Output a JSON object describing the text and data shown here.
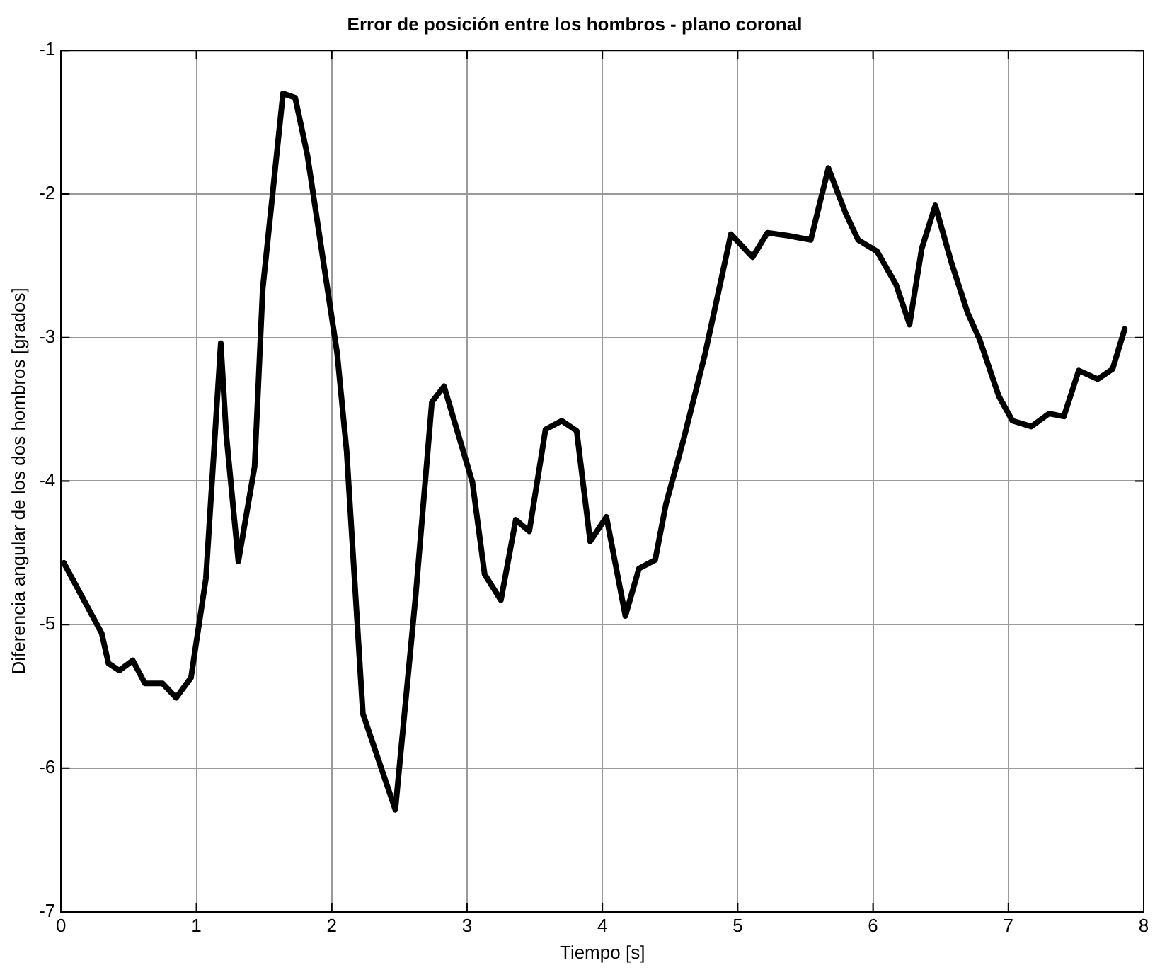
{
  "chart_data": {
    "type": "line",
    "title": "Error de posición entre los hombros - plano coronal",
    "xlabel": "Tiempo [s]",
    "ylabel": "Diferencia angular de los dos hombros [grados]",
    "xlim": [
      0,
      8
    ],
    "xticks": [
      0,
      1,
      2,
      3,
      4,
      5,
      6,
      7,
      8
    ],
    "ylim": [
      -7,
      -1
    ],
    "yticks": [
      -7,
      -6,
      -5,
      -4,
      -3,
      -2,
      -1
    ],
    "grid": true,
    "legend": false,
    "marker": "none",
    "line_style": "solid",
    "series": [
      {
        "color": "#000000",
        "x": [
          0.02,
          0.3,
          0.35,
          0.43,
          0.53,
          0.62,
          0.75,
          0.85,
          0.96,
          1.07,
          1.18,
          1.22,
          1.31,
          1.43,
          1.49,
          1.64,
          1.73,
          1.82,
          2.04,
          2.11,
          2.23,
          2.47,
          2.62,
          2.74,
          2.83,
          3.04,
          3.13,
          3.25,
          3.36,
          3.46,
          3.58,
          3.7,
          3.81,
          3.91,
          4.03,
          4.17,
          4.27,
          4.39,
          4.47,
          4.6,
          4.76,
          4.95,
          5.11,
          5.22,
          5.37,
          5.54,
          5.67,
          5.8,
          5.89,
          6.03,
          6.17,
          6.27,
          6.36,
          6.46,
          6.58,
          6.7,
          6.79,
          6.93,
          7.03,
          7.17,
          7.3,
          7.41,
          7.52,
          7.66,
          7.77,
          7.86
        ],
        "values": [
          -4.57,
          -5.06,
          -5.27,
          -5.32,
          -5.25,
          -5.41,
          -5.41,
          -5.51,
          -5.37,
          -4.68,
          -3.04,
          -3.67,
          -4.56,
          -3.9,
          -2.66,
          -1.3,
          -1.33,
          -1.73,
          -3.11,
          -3.79,
          -5.62,
          -6.29,
          -4.8,
          -3.45,
          -3.34,
          -4.01,
          -4.65,
          -4.83,
          -4.27,
          -4.35,
          -3.64,
          -3.58,
          -3.65,
          -4.42,
          -4.25,
          -4.94,
          -4.61,
          -4.55,
          -4.16,
          -3.71,
          -3.11,
          -2.28,
          -2.44,
          -2.27,
          -2.29,
          -2.32,
          -1.82,
          -2.14,
          -2.32,
          -2.4,
          -2.63,
          -2.91,
          -2.38,
          -2.08,
          -2.48,
          -2.83,
          -3.02,
          -3.41,
          -3.58,
          -3.62,
          -3.53,
          -3.55,
          -3.23,
          -3.29,
          -3.22,
          -2.94
        ]
      }
    ]
  }
}
